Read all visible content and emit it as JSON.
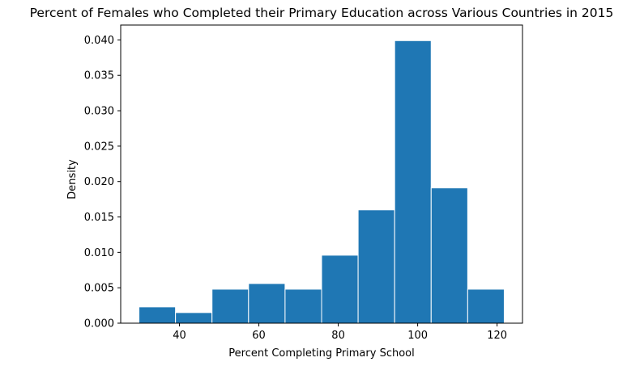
{
  "chart_data": {
    "type": "bar",
    "subtype": "histogram",
    "title": "Percent of Females who Completed their Primary Education across Various Countries in 2015",
    "xlabel": "Percent Completing Primary School",
    "ylabel": "Density",
    "bins": [
      {
        "x0": 29.8,
        "x1": 39.0,
        "value": 0.0023
      },
      {
        "x0": 39.0,
        "x1": 48.2,
        "value": 0.0015
      },
      {
        "x0": 48.2,
        "x1": 57.4,
        "value": 0.0048
      },
      {
        "x0": 57.4,
        "x1": 66.6,
        "value": 0.0056
      },
      {
        "x0": 66.6,
        "x1": 75.8,
        "value": 0.0048
      },
      {
        "x0": 75.8,
        "x1": 85.0,
        "value": 0.0096
      },
      {
        "x0": 85.0,
        "x1": 94.2,
        "value": 0.016
      },
      {
        "x0": 94.2,
        "x1": 103.4,
        "value": 0.0399
      },
      {
        "x0": 103.4,
        "x1": 112.6,
        "value": 0.0191
      },
      {
        "x0": 112.6,
        "x1": 121.8,
        "value": 0.0048
      }
    ],
    "xlim": [
      25.2,
      126.4
    ],
    "ylim": [
      0,
      0.0421
    ],
    "x_ticks": [
      {
        "value": 40,
        "label": "40"
      },
      {
        "value": 60,
        "label": "60"
      },
      {
        "value": 80,
        "label": "80"
      },
      {
        "value": 100,
        "label": "100"
      },
      {
        "value": 120,
        "label": "120"
      }
    ],
    "y_ticks": [
      {
        "value": 0.0,
        "label": "0.000"
      },
      {
        "value": 0.005,
        "label": "0.005"
      },
      {
        "value": 0.01,
        "label": "0.010"
      },
      {
        "value": 0.015,
        "label": "0.015"
      },
      {
        "value": 0.02,
        "label": "0.020"
      },
      {
        "value": 0.025,
        "label": "0.025"
      },
      {
        "value": 0.03,
        "label": "0.030"
      },
      {
        "value": 0.035,
        "label": "0.035"
      },
      {
        "value": 0.04,
        "label": "0.040"
      }
    ],
    "grid": false,
    "legend": "none",
    "colors": {
      "bar_fill": "#1f77b4",
      "bar_edge": "#ffffff",
      "axis": "#000000",
      "background": "#ffffff"
    }
  }
}
